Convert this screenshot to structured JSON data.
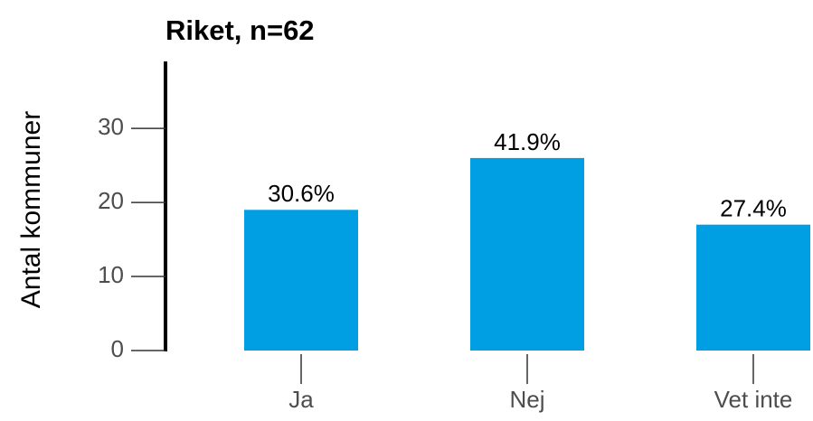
{
  "chart_data": {
    "type": "bar",
    "title": "Riket, n=62",
    "y_label": "Antal kommuner",
    "categories": [
      "Ja",
      "Nej",
      "Vet inte"
    ],
    "values": [
      19,
      26,
      17
    ],
    "value_labels": [
      "30.6%",
      "41.9%",
      "27.4%"
    ],
    "color": "#009fe3",
    "ylim": [
      0,
      38.8
    ],
    "yticks": [
      0,
      10,
      20,
      30
    ],
    "grid": false
  }
}
